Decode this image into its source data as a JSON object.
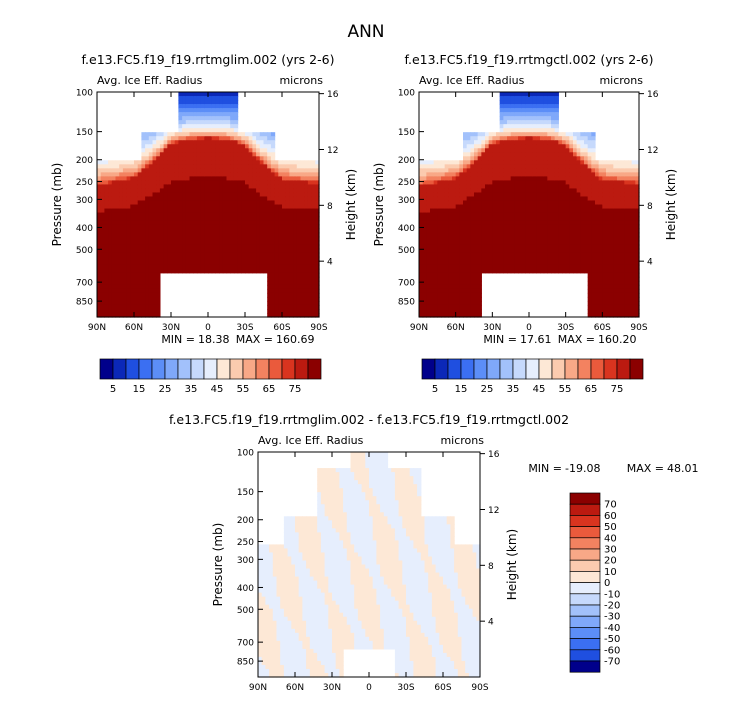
{
  "figure_title": "ANN",
  "chart_data": [
    {
      "type": "heatmap",
      "title": "f.e13.FC5.f19_f19.rrtmglim.002 (yrs 2-6)",
      "left_label": "Avg. Ice Eff. Radius",
      "right_label": "microns",
      "ylabel": "Pressure (mb)",
      "y2label": "Height (km)",
      "x_ticks": [
        "90N",
        "60N",
        "30N",
        "0",
        "30S",
        "60S",
        "90S"
      ],
      "y_ticks": [
        "100",
        "150",
        "200",
        "250",
        "300",
        "400",
        "500",
        "700",
        "850"
      ],
      "y2_ticks": [
        "16",
        "12",
        "8",
        "4"
      ],
      "min_label": "MIN =",
      "min": "18.38",
      "max_label": "MAX =",
      "max": "160.69",
      "xlim": [
        90,
        -90
      ],
      "ylim_mb": [
        100,
        1000
      ],
      "cloud_top_mb": {
        "x": [
          90,
          60,
          45,
          30,
          15,
          0,
          -15,
          -30,
          -45,
          -60,
          -90
        ],
        "y": [
          260,
          240,
          205,
          170,
          162,
          160,
          162,
          172,
          210,
          245,
          255
        ]
      },
      "missing_below_mb": {
        "x_range": [
          38,
          -47
        ],
        "p": 640
      }
    },
    {
      "type": "heatmap",
      "title": "f.e13.FC5.f19_f19.rrtmgctl.002 (yrs 2-6)",
      "left_label": "Avg. Ice Eff. Radius",
      "right_label": "microns",
      "ylabel": "Pressure (mb)",
      "y2label": "Height (km)",
      "x_ticks": [
        "90N",
        "60N",
        "30N",
        "0",
        "30S",
        "60S",
        "90S"
      ],
      "y_ticks": [
        "100",
        "150",
        "200",
        "250",
        "300",
        "400",
        "500",
        "700",
        "850"
      ],
      "y2_ticks": [
        "16",
        "12",
        "8",
        "4"
      ],
      "min_label": "MIN =",
      "min": "17.61",
      "max_label": "MAX =",
      "max": "160.20",
      "xlim": [
        90,
        -90
      ],
      "ylim_mb": [
        100,
        1000
      ],
      "cloud_top_mb": {
        "x": [
          90,
          60,
          45,
          30,
          15,
          0,
          -15,
          -30,
          -45,
          -60,
          -90
        ],
        "y": [
          262,
          242,
          206,
          170,
          162,
          160,
          162,
          172,
          210,
          246,
          256
        ]
      },
      "missing_below_mb": {
        "x_range": [
          38,
          -47
        ],
        "p": 640
      }
    },
    {
      "type": "heatmap",
      "title": "f.e13.FC5.f19_f19.rrtmglim.002 - f.e13.FC5.f19_f19.rrtmgctl.002",
      "left_label": "Avg. Ice Eff. Radius",
      "right_label": "microns",
      "ylabel": "Pressure (mb)",
      "y2label": "Height (km)",
      "x_ticks": [
        "90N",
        "60N",
        "30N",
        "0",
        "30S",
        "60S",
        "90S"
      ],
      "y_ticks": [
        "100",
        "150",
        "200",
        "250",
        "300",
        "400",
        "500",
        "700",
        "850"
      ],
      "y2_ticks": [
        "16",
        "12",
        "8",
        "4"
      ],
      "min_label": "MIN =",
      "min": "-19.08",
      "max_label": "MAX =",
      "max": "48.01",
      "xlim": [
        90,
        -90
      ],
      "ylim_mb": [
        100,
        1000
      ],
      "missing_below_mb": {
        "x_range": [
          20,
          -20
        ],
        "p": 760
      }
    }
  ],
  "colorbar_main": {
    "labels": [
      "5",
      "15",
      "25",
      "35",
      "45",
      "55",
      "65",
      "75"
    ],
    "colors": [
      "#00008b",
      "#0b28b8",
      "#1f4fe0",
      "#3b6ff2",
      "#5c8ef7",
      "#7fa8fa",
      "#a2c1fb",
      "#c6d9fc",
      "#e6eefd",
      "#fde8d6",
      "#fbcbaf",
      "#f8a887",
      "#f38260",
      "#ea5a3c",
      "#d9341f",
      "#bb1a10",
      "#8b0000"
    ]
  },
  "colorbar_diff": {
    "labels": [
      "70",
      "60",
      "50",
      "40",
      "30",
      "20",
      "10",
      "0",
      "-10",
      "-20",
      "-30",
      "-40",
      "-50",
      "-60",
      "-70"
    ],
    "colors": [
      "#8b0000",
      "#bb1a10",
      "#d9341f",
      "#ea5a3c",
      "#f38260",
      "#f8a887",
      "#fbcbaf",
      "#fde8d6",
      "#e6eefd",
      "#c6d9fc",
      "#a2c1fb",
      "#7fa8fa",
      "#5c8ef7",
      "#3b6ff2",
      "#1f4fe0",
      "#00008b"
    ]
  }
}
